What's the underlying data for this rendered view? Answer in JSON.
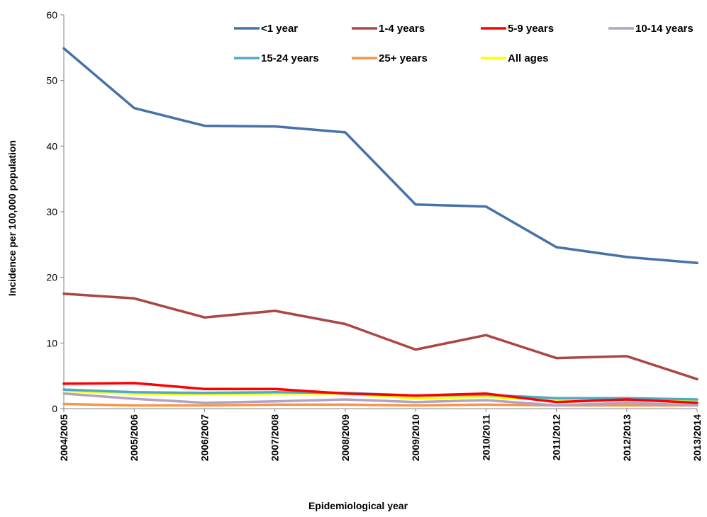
{
  "chart_data": {
    "type": "line",
    "title": "",
    "xlabel": "Epidemiological year",
    "ylabel": "Incidence per 100,000 population",
    "ylim": [
      0,
      60
    ],
    "yticks": [
      "0",
      "10",
      "20",
      "30",
      "40",
      "50",
      "60"
    ],
    "grid": false,
    "legend_position": "top-right",
    "categories": [
      "2004/2005",
      "2005/2006",
      "2006/2007",
      "2007/2008",
      "2008/2009",
      "2009/2010",
      "2010/2011",
      "2011/2012",
      "2012/2013",
      "2013/2014"
    ],
    "series": [
      {
        "name": "<1 year",
        "color": "#4572A7",
        "values": [
          54.9,
          45.8,
          43.1,
          43.0,
          42.1,
          31.1,
          30.8,
          24.6,
          23.1,
          22.2
        ]
      },
      {
        "name": "1-4 years",
        "color": "#AA4643",
        "values": [
          17.5,
          16.8,
          13.9,
          14.9,
          12.9,
          9.0,
          11.2,
          7.7,
          8.0,
          4.5
        ]
      },
      {
        "name": "5-9 years",
        "color": "#FF0000",
        "values": [
          3.8,
          3.9,
          3.0,
          3.0,
          2.3,
          2.0,
          2.3,
          1.0,
          1.4,
          0.9
        ]
      },
      {
        "name": "10-14 years",
        "color": "#B3A2C7",
        "values": [
          2.3,
          1.5,
          0.9,
          1.1,
          1.4,
          1.0,
          1.3,
          0.5,
          0.9,
          0.5
        ]
      },
      {
        "name": "15-24 years",
        "color": "#4BACC6",
        "values": [
          2.9,
          2.5,
          2.4,
          2.5,
          2.4,
          2.0,
          2.1,
          1.6,
          1.6,
          1.4
        ]
      },
      {
        "name": "25+ years",
        "color": "#F79646",
        "values": [
          0.7,
          0.5,
          0.5,
          0.6,
          0.6,
          0.5,
          0.6,
          0.5,
          0.5,
          0.5
        ]
      },
      {
        "name": "All ages",
        "color": "#FFFF00",
        "values": [
          2.7,
          2.3,
          2.2,
          2.3,
          2.3,
          1.6,
          1.8,
          1.3,
          1.3,
          1.1
        ]
      }
    ]
  }
}
